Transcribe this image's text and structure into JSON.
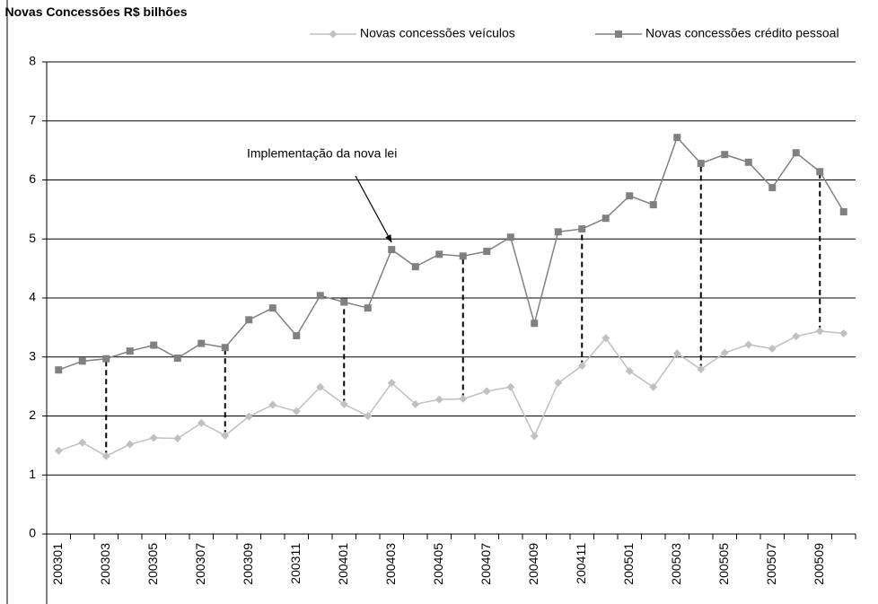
{
  "chart_data": {
    "type": "line",
    "title": "Novas Concessões R$ bilhões",
    "annotation": "Implementação da nova lei",
    "categories": [
      "200301",
      null,
      "200303",
      null,
      "200305",
      null,
      "200307",
      null,
      "200309",
      null,
      "200311",
      null,
      "200401",
      null,
      "200403",
      null,
      "200405",
      null,
      "200407",
      null,
      "200409",
      null,
      "200411",
      null,
      "200501",
      null,
      "200503",
      null,
      "200505",
      null,
      "200507",
      null,
      "200509",
      null
    ],
    "series": [
      {
        "name": "Novas concessões veículos",
        "color": "#c0c0c0",
        "marker": "diamond",
        "values": [
          1.41,
          1.55,
          1.32,
          1.52,
          1.63,
          1.62,
          1.88,
          1.67,
          1.99,
          2.19,
          2.08,
          2.49,
          2.2,
          2.0,
          2.56,
          2.2,
          2.28,
          2.29,
          2.42,
          2.49,
          1.66,
          2.56,
          2.85,
          3.32,
          2.76,
          2.49,
          3.06,
          2.79,
          3.07,
          3.21,
          3.14,
          3.35,
          3.44,
          3.4
        ]
      },
      {
        "name": "Novas concessões crédito pessoal",
        "color": "#808080",
        "marker": "square",
        "values": [
          2.78,
          2.93,
          2.97,
          3.1,
          3.2,
          2.98,
          3.23,
          3.16,
          3.63,
          3.83,
          3.36,
          4.04,
          3.93,
          3.83,
          4.82,
          4.53,
          4.74,
          4.71,
          4.79,
          5.03,
          3.57,
          5.12,
          5.17,
          5.35,
          5.73,
          5.58,
          6.72,
          6.28,
          6.43,
          6.3,
          5.87,
          6.46,
          6.14,
          5.46
        ]
      }
    ],
    "ylim": [
      0,
      8
    ],
    "yticks": [
      0,
      1,
      2,
      3,
      4,
      5,
      6,
      7,
      8
    ],
    "grid": true
  }
}
